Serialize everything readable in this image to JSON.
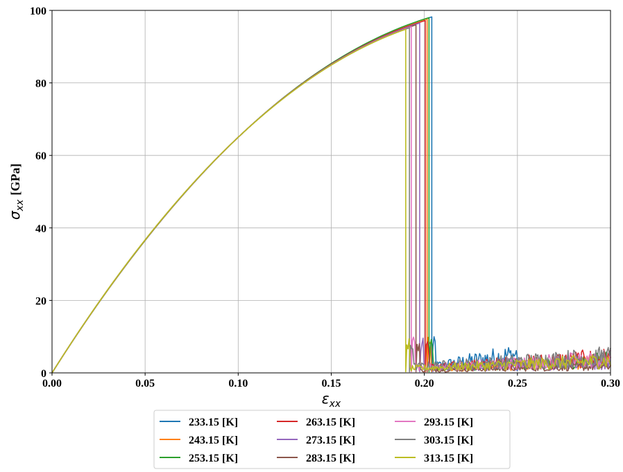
{
  "chart_data": {
    "type": "line",
    "title": "",
    "xlabel": "ε",
    "xlabel_sub": "xx",
    "ylabel": "σ",
    "ylabel_sub": "xx",
    "ylabel_unit": "[GPa]",
    "xlim": [
      0.0,
      0.3
    ],
    "ylim": [
      0,
      100
    ],
    "xticks": [
      "0.00",
      "0.05",
      "0.10",
      "0.15",
      "0.20",
      "0.25",
      "0.30"
    ],
    "yticks": [
      "0",
      "20",
      "40",
      "60",
      "80",
      "100"
    ],
    "grid": true,
    "legend_position": "bottom-center",
    "legend_columns": 3,
    "series": [
      {
        "name": "233.15 [K]",
        "color": "#1f77b4",
        "fracture_strain": 0.204,
        "peak_stress": 98.2,
        "residual_end": 0.25,
        "residual_max": 8.5
      },
      {
        "name": "243.15 [K]",
        "color": "#ff7f0e",
        "fracture_strain": 0.2015,
        "peak_stress": 97.7,
        "residual_end": 0.3,
        "residual_max": 5.0
      },
      {
        "name": "253.15 [K]",
        "color": "#2ca02c",
        "fracture_strain": 0.2025,
        "peak_stress": 98.0,
        "residual_end": 0.3,
        "residual_max": 6.0
      },
      {
        "name": "263.15 [K]",
        "color": "#d62728",
        "fracture_strain": 0.2005,
        "peak_stress": 97.2,
        "residual_end": 0.3,
        "residual_max": 7.0
      },
      {
        "name": "273.15 [K]",
        "color": "#9467bd",
        "fracture_strain": 0.1975,
        "peak_stress": 96.5,
        "residual_end": 0.3,
        "residual_max": 4.5
      },
      {
        "name": "283.15 [K]",
        "color": "#8c564b",
        "fracture_strain": 0.1955,
        "peak_stress": 96.0,
        "residual_end": 0.3,
        "residual_max": 3.0
      },
      {
        "name": "293.15 [K]",
        "color": "#e377c2",
        "fracture_strain": 0.193,
        "peak_stress": 95.5,
        "residual_end": 0.3,
        "residual_max": 6.5
      },
      {
        "name": "303.15 [K]",
        "color": "#7f7f7f",
        "fracture_strain": 0.192,
        "peak_stress": 95.2,
        "residual_end": 0.3,
        "residual_max": 7.5
      },
      {
        "name": "313.15 [K]",
        "color": "#bcbd22",
        "fracture_strain": 0.19,
        "peak_stress": 94.8,
        "residual_end": 0.3,
        "residual_max": 5.5
      }
    ]
  }
}
